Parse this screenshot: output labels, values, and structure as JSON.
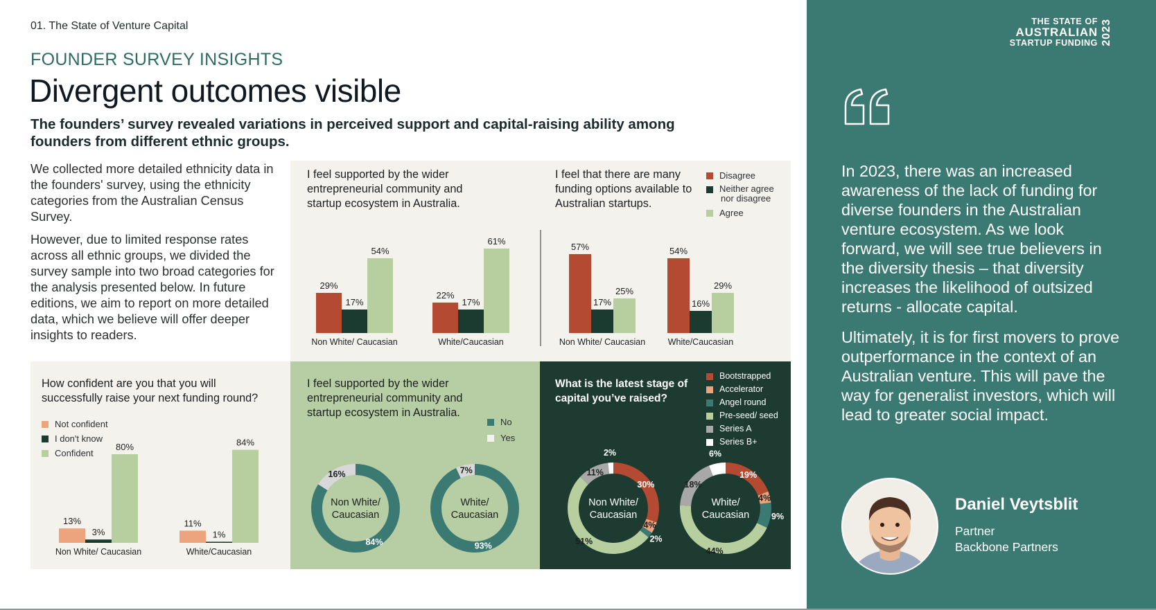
{
  "header": {
    "section": "01. The State of Venture Capital",
    "eyebrow": "FOUNDER SURVEY INSIGHTS",
    "title": "Divergent outcomes visible",
    "subtitle": "The founders’ survey revealed variations in perceived support and capital-raising ability among founders from different ethnic groups."
  },
  "intro": {
    "p1": "We collected more detailed ethnicity data in the founders' survey, using the ethnicity categories from the Australian Census Survey.",
    "p2": "However, due to limited response rates across all ethnic groups, we divided the survey sample into two broad categories for the analysis presented below. In future editions, we aim to report on more detailed data, which we believe will offer deeper insights to readers."
  },
  "colors": {
    "disagree": "#b44a31",
    "neutral": "#1c3b30",
    "agree": "#b7cf9f",
    "not_confident": "#eda37c",
    "teal": "#3b7a72",
    "light_grey": "#d8d8d8",
    "beige_panel": "#f4f2ed",
    "green_panel": "#b7cda4",
    "dark_panel": "#1d3b30",
    "series_a": "#a8a8a8",
    "white": "#ffffff"
  },
  "sidebar": {
    "brand_line1": "THE STATE OF",
    "brand_line2": "AUSTRALIAN",
    "brand_line3": "STARTUP FUNDING",
    "brand_year": "2023",
    "quote_mark": "❝",
    "quote_p1": "In 2023, there was an increased awareness of the lack of funding for diverse founders in the Australian venture ecosystem. As we look forward, we will see true believers in the diversity thesis – that diversity increases the likelihood of outsized returns - allocate capital.",
    "quote_p2": "Ultimately, it is for first movers to prove outperformance in the context of an Australian venture. This will pave the way for generalist investors, which will lead to greater social impact.",
    "person_name": "Daniel Veytsblit",
    "person_role": "Partner",
    "person_company": "Backbone Partners"
  },
  "legend_agree": {
    "disagree": "Disagree",
    "neutral_line1": "Neither agree",
    "neutral_line2": "nor disagree",
    "agree": "Agree"
  },
  "legend_confidence": {
    "not_confident": "Not confident",
    "dont_know": "I don't know",
    "confident": "Confident"
  },
  "legend_noyes": {
    "no": "No",
    "yes": "Yes"
  },
  "legend_stage": {
    "bootstrapped": "Bootstrapped",
    "accelerator": "Accelerator",
    "angel": "Angel round",
    "preseed": "Pre-seed/ seed",
    "series_a": "Series A",
    "series_b": "Series B+"
  },
  "panel_titles": {
    "supported": "I feel supported by the wider entrepreneurial community and startup ecosystem in Australia.",
    "funding_options": "I feel that there are many funding options available to Australian startups.",
    "confidence": "How confident are you that you will successfully raise your next funding round?",
    "supported_donut": "I feel supported by the wider entrepreneurial community and startup ecosystem in Australia.",
    "stage": "What is the latest stage of capital you’ve raised?"
  },
  "chart_data": [
    {
      "type": "bar",
      "title": "I feel supported by the wider entrepreneurial community and startup ecosystem in Australia.",
      "categories": [
        "Non White/ Caucasian",
        "White/Caucasian"
      ],
      "series": [
        {
          "name": "Disagree",
          "values": [
            29,
            22
          ]
        },
        {
          "name": "Neither agree nor disagree",
          "values": [
            17,
            17
          ]
        },
        {
          "name": "Agree",
          "values": [
            54,
            61
          ]
        }
      ],
      "unit": "%"
    },
    {
      "type": "bar",
      "title": "I feel that there are many funding options available to Australian startups.",
      "categories": [
        "Non White/ Caucasian",
        "White/Caucasian"
      ],
      "series": [
        {
          "name": "Disagree",
          "values": [
            57,
            54
          ]
        },
        {
          "name": "Neither agree nor disagree",
          "values": [
            17,
            16
          ]
        },
        {
          "name": "Agree",
          "values": [
            25,
            29
          ]
        }
      ],
      "unit": "%"
    },
    {
      "type": "bar",
      "title": "How confident are you that you will successfully raise your next funding round?",
      "categories": [
        "Non White/ Caucasian",
        "White/Caucasian"
      ],
      "series": [
        {
          "name": "Not confident",
          "values": [
            13,
            11
          ]
        },
        {
          "name": "I don't know",
          "values": [
            3,
            1
          ]
        },
        {
          "name": "Confident",
          "values": [
            80,
            84
          ]
        }
      ],
      "unit": "%"
    },
    {
      "type": "pie",
      "title": "I feel supported by the wider entrepreneurial community and startup ecosystem in Australia.",
      "donuts": [
        {
          "center_line1": "Non White/",
          "center_line2": "Caucasian",
          "slices": [
            {
              "name": "No",
              "value": 84
            },
            {
              "name": "Yes",
              "value": 16
            }
          ]
        },
        {
          "center_line1": "White/",
          "center_line2": "Caucasian",
          "slices": [
            {
              "name": "No",
              "value": 93
            },
            {
              "name": "Yes",
              "value": 7
            }
          ]
        }
      ],
      "unit": "%"
    },
    {
      "type": "pie",
      "title": "What is the latest stage of capital you’ve raised?",
      "donuts": [
        {
          "center_line1": "Non White/",
          "center_line2": "Caucasian",
          "slices": [
            {
              "name": "Bootstrapped",
              "value": 30
            },
            {
              "name": "Accelerator",
              "value": 4
            },
            {
              "name": "Angel round",
              "value": 2
            },
            {
              "name": "Pre-seed/ seed",
              "value": 51
            },
            {
              "name": "Series A",
              "value": 11
            },
            {
              "name": "Series B+",
              "value": 2
            }
          ]
        },
        {
          "center_line1": "White/",
          "center_line2": "Caucasian",
          "slices": [
            {
              "name": "Bootstrapped",
              "value": 19
            },
            {
              "name": "Accelerator",
              "value": 4
            },
            {
              "name": "Angel round",
              "value": 9
            },
            {
              "name": "Pre-seed/ seed",
              "value": 44
            },
            {
              "name": "Series A",
              "value": 18
            },
            {
              "name": "Series B+",
              "value": 6
            }
          ]
        }
      ],
      "unit": "%"
    }
  ]
}
